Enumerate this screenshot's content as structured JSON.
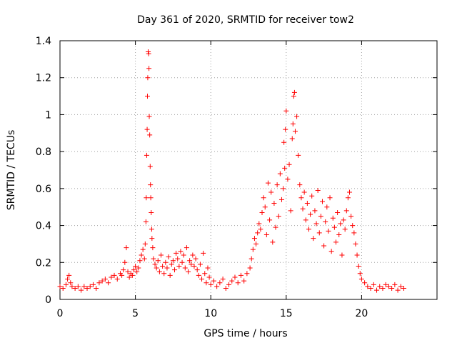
{
  "chart_data": {
    "type": "scatter",
    "title": "Day 361 of 2020, SRMTID for receiver tow2",
    "xlabel": "GPS time / hours",
    "ylabel": "SRMTID / TECUs",
    "xlim": [
      0,
      25
    ],
    "ylim": [
      0,
      1.4
    ],
    "xticks": [
      0,
      5,
      10,
      15,
      20
    ],
    "xtick_labels": [
      "0",
      "5",
      "10",
      "15",
      "20"
    ],
    "yticks": [
      0,
      0.2,
      0.4,
      0.6,
      0.8,
      1.0,
      1.2,
      1.4
    ],
    "ytick_labels": [
      "0",
      "0.2",
      "0.4",
      "0.6",
      "0.8",
      "1",
      "1.2",
      "1.4"
    ],
    "grid": true,
    "marker": "+",
    "series": [
      {
        "name": "SRMTID tow2",
        "color": "#ff0000",
        "x": [
          0.0,
          0.2,
          0.4,
          0.5,
          0.6,
          0.7,
          0.8,
          1.0,
          1.2,
          1.4,
          1.6,
          1.8,
          2.0,
          2.2,
          2.4,
          2.6,
          2.8,
          3.0,
          3.2,
          3.4,
          3.6,
          3.8,
          4.0,
          4.1,
          4.2,
          4.3,
          4.4,
          4.5,
          4.6,
          4.7,
          4.8,
          4.9,
          5.0,
          5.1,
          5.2,
          5.3,
          5.4,
          5.5,
          5.6,
          5.65,
          5.7,
          5.72,
          5.75,
          5.78,
          5.8,
          5.82,
          5.85,
          5.88,
          5.9,
          5.92,
          5.95,
          5.98,
          6.0,
          6.02,
          6.05,
          6.08,
          6.1,
          6.15,
          6.2,
          6.3,
          6.4,
          6.5,
          6.6,
          6.7,
          6.8,
          6.9,
          7.0,
          7.1,
          7.2,
          7.3,
          7.4,
          7.5,
          7.6,
          7.7,
          7.8,
          7.9,
          8.0,
          8.1,
          8.2,
          8.3,
          8.4,
          8.5,
          8.6,
          8.7,
          8.8,
          8.9,
          9.0,
          9.1,
          9.2,
          9.3,
          9.4,
          9.5,
          9.6,
          9.7,
          9.8,
          9.9,
          10.0,
          10.2,
          10.4,
          10.6,
          10.8,
          11.0,
          11.2,
          11.4,
          11.6,
          11.8,
          12.0,
          12.2,
          12.4,
          12.6,
          12.7,
          12.8,
          12.9,
          13.0,
          13.1,
          13.2,
          13.3,
          13.4,
          13.5,
          13.6,
          13.7,
          13.8,
          13.9,
          14.0,
          14.1,
          14.2,
          14.3,
          14.4,
          14.5,
          14.6,
          14.7,
          14.8,
          14.85,
          14.9,
          14.95,
          15.0,
          15.1,
          15.2,
          15.3,
          15.4,
          15.45,
          15.5,
          15.55,
          15.6,
          15.7,
          15.8,
          15.9,
          16.0,
          16.1,
          16.2,
          16.3,
          16.4,
          16.5,
          16.6,
          16.7,
          16.8,
          16.9,
          17.0,
          17.1,
          17.2,
          17.3,
          17.4,
          17.5,
          17.6,
          17.7,
          17.8,
          17.9,
          18.0,
          18.1,
          18.2,
          18.3,
          18.4,
          18.5,
          18.6,
          18.7,
          18.8,
          18.9,
          19.0,
          19.1,
          19.2,
          19.3,
          19.4,
          19.5,
          19.6,
          19.7,
          19.8,
          19.9,
          20.0,
          20.2,
          20.4,
          20.6,
          20.8,
          21.0,
          21.2,
          21.4,
          21.6,
          21.8,
          22.0,
          22.2,
          22.4,
          22.6,
          22.8
        ],
        "y": [
          0.07,
          0.06,
          0.08,
          0.11,
          0.13,
          0.09,
          0.07,
          0.06,
          0.07,
          0.05,
          0.07,
          0.06,
          0.07,
          0.08,
          0.06,
          0.09,
          0.1,
          0.11,
          0.09,
          0.12,
          0.13,
          0.11,
          0.14,
          0.13,
          0.16,
          0.2,
          0.28,
          0.15,
          0.12,
          0.14,
          0.13,
          0.16,
          0.18,
          0.15,
          0.17,
          0.21,
          0.24,
          0.27,
          0.22,
          0.3,
          0.42,
          0.55,
          0.78,
          0.92,
          1.1,
          1.2,
          1.34,
          1.33,
          1.25,
          0.99,
          0.89,
          0.72,
          0.62,
          0.55,
          0.47,
          0.38,
          0.33,
          0.28,
          0.22,
          0.19,
          0.17,
          0.21,
          0.15,
          0.24,
          0.18,
          0.14,
          0.2,
          0.17,
          0.23,
          0.13,
          0.19,
          0.21,
          0.16,
          0.25,
          0.22,
          0.18,
          0.26,
          0.2,
          0.24,
          0.17,
          0.28,
          0.15,
          0.21,
          0.19,
          0.24,
          0.18,
          0.22,
          0.16,
          0.13,
          0.19,
          0.11,
          0.25,
          0.14,
          0.09,
          0.17,
          0.12,
          0.08,
          0.1,
          0.07,
          0.09,
          0.11,
          0.06,
          0.08,
          0.1,
          0.12,
          0.09,
          0.13,
          0.1,
          0.14,
          0.17,
          0.22,
          0.27,
          0.33,
          0.3,
          0.36,
          0.41,
          0.38,
          0.47,
          0.55,
          0.5,
          0.35,
          0.63,
          0.43,
          0.58,
          0.31,
          0.52,
          0.39,
          0.62,
          0.45,
          0.68,
          0.54,
          0.6,
          0.85,
          0.71,
          0.92,
          1.02,
          0.65,
          0.73,
          0.48,
          0.87,
          0.95,
          1.1,
          1.12,
          0.91,
          0.99,
          0.78,
          0.62,
          0.55,
          0.49,
          0.58,
          0.43,
          0.52,
          0.38,
          0.46,
          0.56,
          0.33,
          0.48,
          0.41,
          0.59,
          0.36,
          0.45,
          0.53,
          0.29,
          0.42,
          0.5,
          0.37,
          0.55,
          0.26,
          0.44,
          0.39,
          0.31,
          0.47,
          0.35,
          0.41,
          0.24,
          0.43,
          0.38,
          0.48,
          0.55,
          0.58,
          0.45,
          0.4,
          0.36,
          0.3,
          0.24,
          0.18,
          0.14,
          0.11,
          0.09,
          0.07,
          0.06,
          0.08,
          0.05,
          0.07,
          0.06,
          0.08,
          0.07,
          0.06,
          0.08,
          0.05,
          0.07,
          0.06
        ]
      }
    ]
  }
}
